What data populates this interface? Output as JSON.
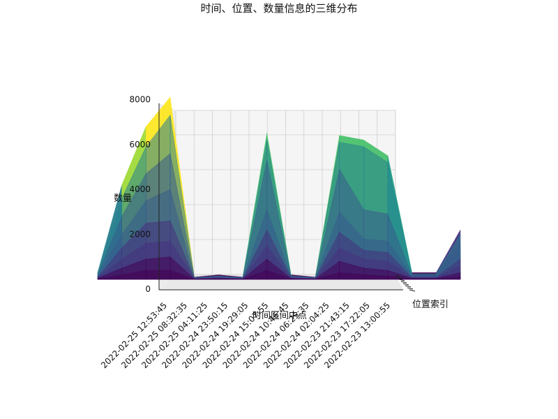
{
  "chart_data": {
    "type": "3d-surface",
    "title": "时间、位置、数量信息的三维分布",
    "xlabel": "时间区间中点",
    "ylabel": "位置索引",
    "zlabel": "数量",
    "x_tick_labels": [
      "2022-02-25 12:53:45",
      "2022-02-25 08:32:35",
      "2022-02-25 04:11:25",
      "2022-02-24 23:50:15",
      "2022-02-24 19:29:05",
      "2022-02-24 15:07:55",
      "2022-02-24 10:46:45",
      "2022-02-24 06:25:35",
      "2022-02-24 02:04:25",
      "2022-02-23 21:43:15",
      "2022-02-23 17:22:05",
      "2022-02-23 13:00:55"
    ],
    "z_ticks": [
      0,
      2000,
      4000,
      6000,
      8000
    ],
    "zlim": [
      0,
      9000
    ],
    "colormap": "viridis",
    "grid": true,
    "view": "front, low elevation",
    "series": [
      {
        "values": [
          300,
          4200,
          6800,
          8100,
          100,
          200,
          100,
          6500,
          200,
          100,
          6400,
          6200,
          5500,
          300,
          300,
          2200
        ]
      },
      {
        "values": [
          250,
          3600,
          5900,
          7300,
          80,
          150,
          80,
          6200,
          150,
          80,
          6100,
          5900,
          5200,
          250,
          250,
          2000
        ]
      },
      {
        "values": [
          200,
          2800,
          4700,
          5600,
          60,
          120,
          60,
          5300,
          120,
          60,
          4900,
          3100,
          2900,
          200,
          200,
          1600
        ]
      },
      {
        "values": [
          150,
          2000,
          3500,
          4000,
          50,
          100,
          50,
          3100,
          100,
          50,
          3000,
          1800,
          1700,
          150,
          150,
          1200
        ]
      },
      {
        "values": [
          100,
          1400,
          2500,
          2600,
          40,
          80,
          40,
          2200,
          80,
          40,
          2100,
          1300,
          1200,
          100,
          100,
          900
        ]
      },
      {
        "values": [
          80,
          900,
          1600,
          1700,
          30,
          60,
          30,
          1500,
          60,
          30,
          1400,
          900,
          800,
          80,
          80,
          600
        ]
      },
      {
        "values": [
          50,
          500,
          900,
          1000,
          20,
          40,
          20,
          900,
          40,
          20,
          800,
          500,
          400,
          50,
          50,
          300
        ]
      },
      {
        "values": [
          20,
          200,
          400,
          400,
          10,
          20,
          10,
          400,
          20,
          10,
          300,
          200,
          150,
          20,
          20,
          100
        ]
      }
    ]
  }
}
